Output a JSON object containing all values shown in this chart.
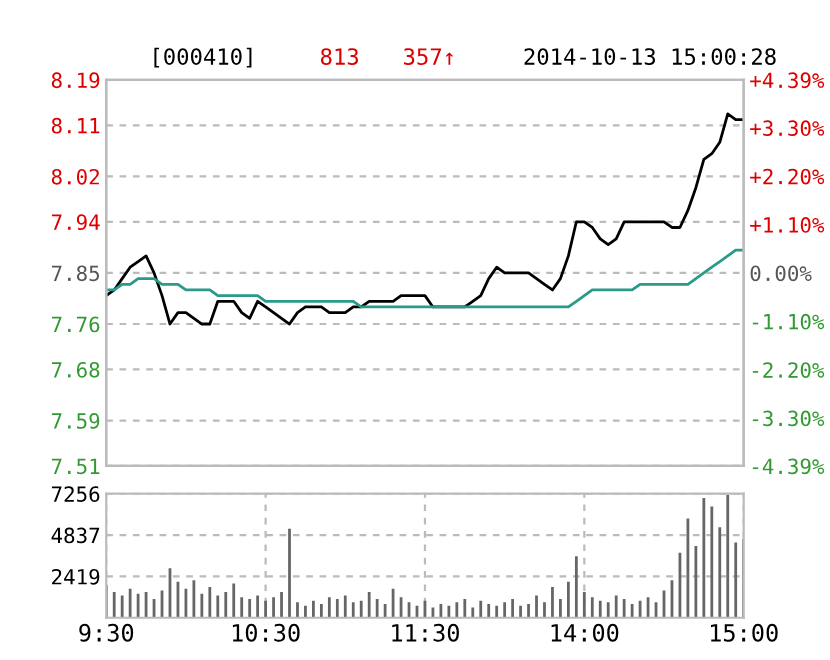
{
  "chart_data": [
    {
      "type": "line",
      "annotations": [
        "[000410]",
        "813",
        "357↑",
        "2014-10-13 15:00:28"
      ],
      "categories": [
        null,
        null,
        null,
        null,
        null,
        null,
        null,
        null,
        null,
        null,
        null,
        null,
        null,
        null,
        null,
        null,
        null,
        null,
        null,
        null,
        null,
        null,
        null,
        null,
        null,
        null,
        null,
        null,
        null,
        null,
        null,
        null,
        null,
        null,
        null,
        null,
        null,
        null,
        null,
        null,
        null,
        null,
        null,
        null,
        null,
        null,
        null,
        null,
        null,
        null,
        null,
        null,
        null,
        null,
        null,
        null,
        null,
        null,
        null,
        null,
        null,
        null,
        null,
        null,
        null,
        null,
        null,
        null,
        null,
        null,
        null,
        null,
        null,
        null,
        null,
        null,
        null,
        null,
        null,
        null,
        null
      ],
      "ylim": [
        7.51,
        8.19
      ],
      "yticks": [
        {
          "value": 7.51,
          "label": "7.51"
        },
        {
          "value": 7.59,
          "label": "7.59"
        },
        {
          "value": 7.68,
          "label": "7.68"
        },
        {
          "value": 7.76,
          "label": "7.76"
        },
        {
          "value": 7.85,
          "label": "7.85"
        },
        {
          "value": 7.94,
          "label": "7.94"
        },
        {
          "value": 8.02,
          "label": "8.02"
        },
        {
          "value": 8.11,
          "label": "8.11"
        },
        {
          "value": 8.19,
          "label": "8.19"
        }
      ],
      "y2lim": [
        -4.39,
        4.39
      ],
      "y2ticks": [
        {
          "value": -4.39,
          "label": "-4.39%"
        },
        {
          "value": -3.3,
          "label": "-3.30%"
        },
        {
          "value": -2.2,
          "label": "-2.20%"
        },
        {
          "value": -1.1,
          "label": "-1.10%"
        },
        {
          "value": 0,
          "label": "0.00%"
        },
        {
          "value": 1.1,
          "label": "+1.10%"
        },
        {
          "value": 2.2,
          "label": "+2.20%"
        },
        {
          "value": 3.3,
          "label": "+3.30%"
        },
        {
          "value": 4.39,
          "label": "+4.39%"
        }
      ],
      "grid": "y",
      "series": [
        {
          "color": "#000000",
          "values": [
            7.81,
            7.82,
            7.84,
            7.86,
            7.87,
            7.88,
            7.85,
            7.81,
            7.76,
            7.78,
            7.78,
            7.77,
            7.76,
            7.76,
            7.8,
            7.8,
            7.8,
            7.78,
            7.77,
            7.8,
            7.79,
            7.78,
            7.77,
            7.76,
            7.78,
            7.79,
            7.79,
            7.79,
            7.78,
            7.78,
            7.78,
            7.79,
            7.79,
            7.8,
            7.8,
            7.8,
            7.8,
            7.81,
            7.81,
            7.81,
            7.81,
            7.79,
            7.79,
            7.79,
            7.79,
            7.79,
            7.8,
            7.81,
            7.84,
            7.86,
            7.85,
            7.85,
            7.85,
            7.85,
            7.84,
            7.83,
            7.82,
            7.84,
            7.88,
            7.94,
            7.94,
            7.93,
            7.91,
            7.9,
            7.91,
            7.94,
            7.94,
            7.94,
            7.94,
            7.94,
            7.94,
            7.93,
            7.93,
            7.96,
            8.0,
            8.05,
            8.06,
            8.08,
            8.13,
            8.12,
            8.12
          ]
        },
        {
          "color": "#2a9a8a",
          "values": [
            7.82,
            7.82,
            7.83,
            7.83,
            7.84,
            7.84,
            7.84,
            7.83,
            7.83,
            7.83,
            7.82,
            7.82,
            7.82,
            7.82,
            7.81,
            7.81,
            7.81,
            7.81,
            7.81,
            7.81,
            7.8,
            7.8,
            7.8,
            7.8,
            7.8,
            7.8,
            7.8,
            7.8,
            7.8,
            7.8,
            7.8,
            7.8,
            7.79,
            7.79,
            7.79,
            7.79,
            7.79,
            7.79,
            7.79,
            7.79,
            7.79,
            7.79,
            7.79,
            7.79,
            7.79,
            7.79,
            7.79,
            7.79,
            7.79,
            7.79,
            7.79,
            7.79,
            7.79,
            7.79,
            7.79,
            7.79,
            7.79,
            7.79,
            7.79,
            7.8,
            7.81,
            7.82,
            7.82,
            7.82,
            7.82,
            7.82,
            7.82,
            7.83,
            7.83,
            7.83,
            7.83,
            7.83,
            7.83,
            7.83,
            7.84,
            7.85,
            7.86,
            7.87,
            7.88,
            7.89,
            7.89
          ]
        }
      ]
    },
    {
      "type": "bar",
      "color": "#666666",
      "categories": [
        "9:30",
        null,
        null,
        null,
        null,
        null,
        null,
        null,
        null,
        null,
        null,
        null,
        null,
        null,
        null,
        null,
        null,
        null,
        null,
        null,
        "10:30",
        null,
        null,
        null,
        null,
        null,
        null,
        null,
        null,
        null,
        null,
        null,
        null,
        null,
        null,
        null,
        null,
        null,
        null,
        null,
        "11:30",
        null,
        null,
        null,
        null,
        null,
        null,
        null,
        null,
        null,
        null,
        null,
        null,
        null,
        null,
        null,
        null,
        null,
        null,
        null,
        "14:00",
        null,
        null,
        null,
        null,
        null,
        null,
        null,
        null,
        null,
        null,
        null,
        null,
        null,
        null,
        null,
        null,
        null,
        null,
        null,
        "15:00"
      ],
      "values": [
        1900,
        1500,
        1300,
        1700,
        1400,
        1500,
        1100,
        1600,
        2900,
        2100,
        1700,
        2200,
        1400,
        1800,
        1300,
        1500,
        2000,
        1200,
        1100,
        1300,
        1000,
        1200,
        1500,
        5200,
        900,
        700,
        1000,
        800,
        1200,
        1100,
        1300,
        900,
        1000,
        1500,
        1100,
        800,
        1700,
        1200,
        900,
        700,
        1000,
        600,
        800,
        700,
        900,
        1100,
        600,
        1000,
        800,
        700,
        900,
        1100,
        700,
        800,
        1300,
        900,
        1800,
        1100,
        2100,
        3600,
        1500,
        1200,
        1000,
        900,
        1300,
        1100,
        800,
        1000,
        1200,
        900,
        1600,
        2200,
        3800,
        5800,
        4200,
        7000,
        6500,
        5300,
        7200,
        4400,
        4600
      ],
      "ylim": [
        0,
        7256
      ],
      "yticks": [
        2419,
        4837,
        7256
      ],
      "grid": true
    }
  ]
}
